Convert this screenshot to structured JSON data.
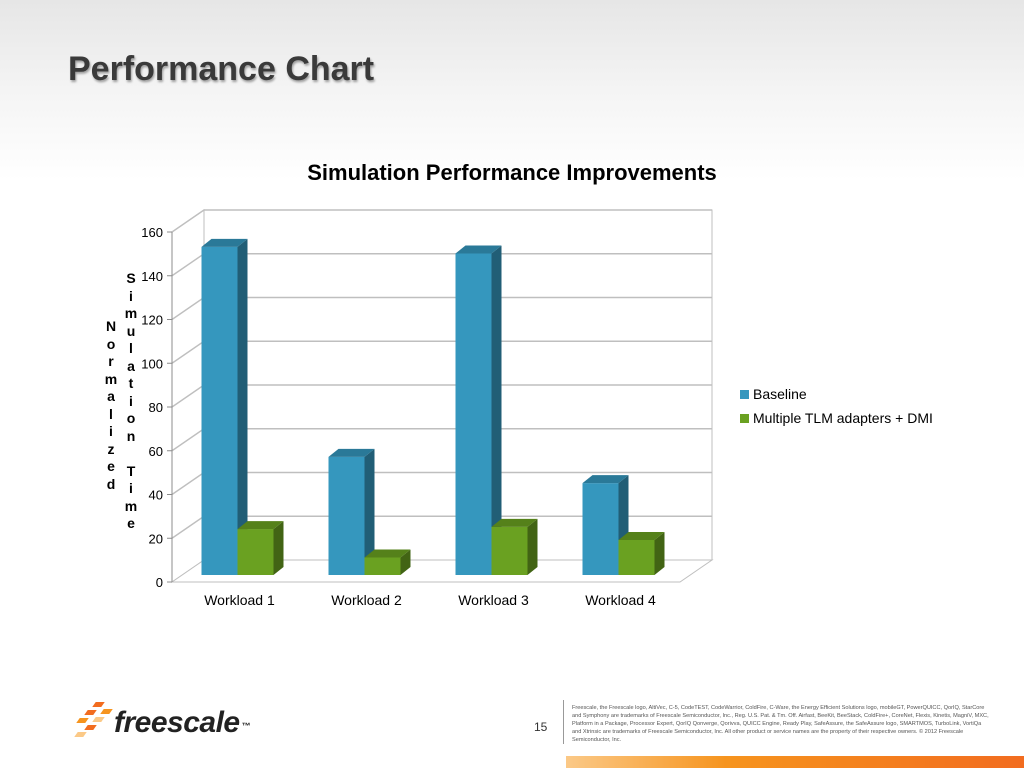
{
  "slide": {
    "title": "Performance Chart",
    "page_number": "15",
    "logo_text": "freescale",
    "logo_tm": "™",
    "disclaimer": "Freescale, the Freescale logo, AltiVec, C-5, CodeTEST, CodeWarrior, ColdFire, C-Ware, the Energy Efficient Solutions logo, mobileGT, PowerQUICC, QorIQ, StarCore and Symphony are trademarks of Freescale Semiconductor, Inc., Reg. U.S. Pat. & Tm. Off. Airfast, BeeKit, BeeStack, ColdFire+, CoreNet, Flexis, Kinetis, MagniV, MXC, Platform in a Package, Processor Expert, QorIQ Qonverge, Qorivva, QUICC Engine, Ready Play, SafeAssure, the SafeAssure logo, SMARTMOS, TurboLink, VortiQa and Xtrinsic are trademarks of Freescale Semiconductor, Inc. All other product or service names are the property of their respective owners. © 2012 Freescale Semiconductor, Inc."
  },
  "colors": {
    "baseline": "#3597be",
    "dmi": "#6aa121",
    "footer_orange": "#f26c1f"
  },
  "chart_data": {
    "type": "bar",
    "title": "Simulation Performance Improvements",
    "ylabel_lines": [
      "Normalized",
      "Simulation",
      "Time"
    ],
    "xlabel": "",
    "categories": [
      "Workload 1",
      "Workload 2",
      "Workload 3",
      "Workload 4"
    ],
    "series": [
      {
        "name": "Baseline",
        "values": [
          150,
          54,
          147,
          42
        ]
      },
      {
        "name": "Multiple TLM adapters + DMI",
        "values": [
          21,
          8,
          22,
          16
        ]
      }
    ],
    "ylim": [
      0,
      160
    ],
    "yticks": [
      0,
      20,
      40,
      60,
      80,
      100,
      120,
      140,
      160
    ],
    "grid": true,
    "legend_position": "right",
    "style": "3d-clustered-column"
  }
}
